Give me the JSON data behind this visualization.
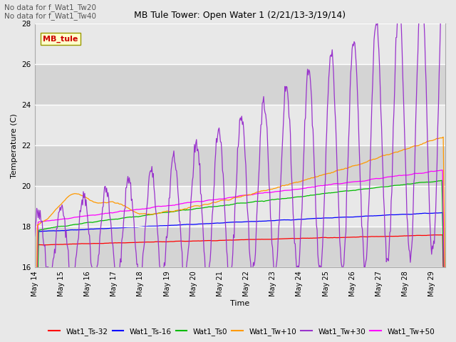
{
  "title": "MB Tule Tower: Open Water 1 (2/21/13-3/19/14)",
  "xlabel": "Time",
  "ylabel": "Temperature (C)",
  "ylim": [
    16,
    28
  ],
  "yticks": [
    16,
    18,
    20,
    22,
    24,
    26,
    28
  ],
  "xlim_days": [
    0,
    15.5
  ],
  "x_tick_labels": [
    "May 14",
    "May 15",
    "May 16",
    "May 17",
    "May 18",
    "May 19",
    "May 20",
    "May 21",
    "May 22",
    "May 23",
    "May 24",
    "May 25",
    "May 26",
    "May 27",
    "May 28",
    "May 29"
  ],
  "x_tick_positions": [
    0,
    1,
    2,
    3,
    4,
    5,
    6,
    7,
    8,
    9,
    10,
    11,
    12,
    13,
    14,
    15
  ],
  "annotation_text": "No data for f_Wat1_Tw20\nNo data for f_Wat1_Tw40",
  "legend_label": "MB_tule",
  "colors": {
    "Wat1_Ts-32": "#ff0000",
    "Wat1_Ts-16": "#0000ff",
    "Wat1_Ts0": "#00bb00",
    "Wat1_Tw+10": "#ff9900",
    "Wat1_Tw+30": "#9933cc",
    "Wat1_Tw+50": "#ff00ff"
  },
  "bg_color": "#e8e8e8",
  "plot_bg_color": "#e8e8e8",
  "grid_color": "#ffffff",
  "stripe_color": "#d8d8d8"
}
